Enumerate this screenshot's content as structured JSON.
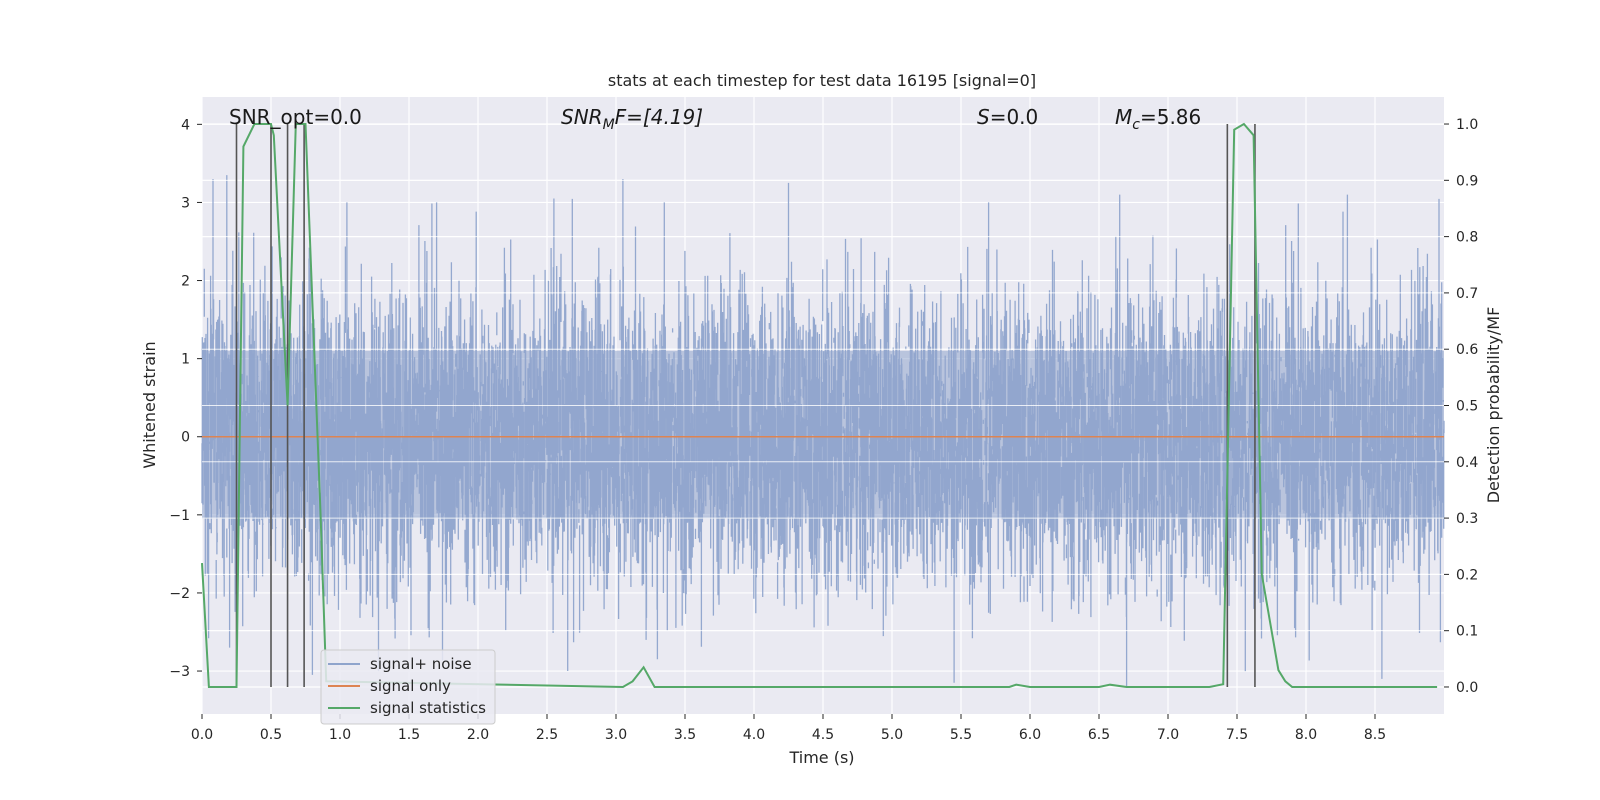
{
  "chart_data": {
    "type": "line",
    "title": "stats at each timestep for test data 16195 [signal=0]",
    "xlabel": "Time (s)",
    "ylabel": "Whitened strain",
    "y2label": "Detection probability/MF",
    "xlim": [
      0,
      9.0
    ],
    "ylim": [
      -3.55,
      4.35
    ],
    "y2lim": [
      -0.048,
      1.048
    ],
    "x_ticks": [
      "0.0",
      "0.5",
      "1.0",
      "1.5",
      "2.0",
      "2.5",
      "3.0",
      "3.5",
      "4.0",
      "4.5",
      "5.0",
      "5.5",
      "6.0",
      "6.5",
      "7.0",
      "7.5",
      "8.0",
      "8.5"
    ],
    "y_ticks": [
      "4",
      "3",
      "2",
      "1",
      "0",
      "−1",
      "−2",
      "−3"
    ],
    "y2_ticks": [
      "1.0",
      "0.9",
      "0.8",
      "0.7",
      "0.6",
      "0.5",
      "0.4",
      "0.3",
      "0.2",
      "0.1",
      "0.0"
    ],
    "grid": true,
    "legend_position": "lower-left",
    "annotations": {
      "snr_opt": "SNR_opt=0.0",
      "snr_mf_sym": "SNR",
      "snr_mf_sub": "M",
      "snr_mf_rest": "F=[4.19]",
      "s_sym": "S",
      "s_rest": "=0.0",
      "mc_sym": "M",
      "mc_sub": "c",
      "mc_rest": "=5.86"
    },
    "series": [
      {
        "name": "signal+ noise",
        "color": "#8fa4cc",
        "description_level": "noise band",
        "noise_core_range": [
          -1.05,
          1.1
        ],
        "noise_extreme_range": [
          -3.2,
          3.35
        ],
        "peaks": [
          [
            0.08,
            3.3
          ],
          [
            0.18,
            3.35
          ],
          [
            1.05,
            3.0
          ],
          [
            1.7,
            3.0
          ],
          [
            2.55,
            3.05
          ],
          [
            3.05,
            3.3
          ],
          [
            3.35,
            3.0
          ],
          [
            4.25,
            3.25
          ],
          [
            5.7,
            3.0
          ],
          [
            6.65,
            3.1
          ],
          [
            8.3,
            3.1
          ]
        ],
        "troughs": [
          [
            0.2,
            -2.7
          ],
          [
            0.8,
            -3.05
          ],
          [
            2.65,
            -3.0
          ],
          [
            3.3,
            -2.85
          ],
          [
            5.45,
            -3.15
          ],
          [
            6.7,
            -3.2
          ],
          [
            8.55,
            -3.1
          ]
        ]
      },
      {
        "name": "signal only",
        "color": "#dd8452",
        "x": [
          0,
          9.0
        ],
        "y": [
          0,
          0
        ]
      },
      {
        "name": "signal statistics",
        "color": "#55a868",
        "axis": "right",
        "x": [
          0.0,
          0.05,
          0.1,
          0.25,
          0.3,
          0.38,
          0.5,
          0.52,
          0.62,
          0.68,
          0.75,
          0.86,
          0.9,
          3.05,
          3.12,
          3.2,
          3.28,
          5.85,
          5.9,
          6.0,
          6.5,
          6.58,
          6.7,
          7.3,
          7.4,
          7.48,
          7.55,
          7.62,
          7.68,
          7.8,
          7.85,
          7.9,
          8.95
        ],
        "y": [
          0.22,
          0.0,
          0.0,
          0.0,
          0.96,
          1.0,
          1.0,
          0.98,
          0.5,
          1.0,
          1.0,
          0.3,
          0.01,
          0.0,
          0.01,
          0.035,
          0.0,
          0.0,
          0.004,
          0.0,
          0.0,
          0.004,
          0.0,
          0.0,
          0.005,
          0.99,
          1.0,
          0.98,
          0.2,
          0.03,
          0.01,
          0.0,
          0.0
        ]
      }
    ],
    "vertical_markers": {
      "color": "#555555",
      "x": [
        0.25,
        0.5,
        0.62,
        0.74,
        7.43,
        7.63
      ]
    }
  }
}
